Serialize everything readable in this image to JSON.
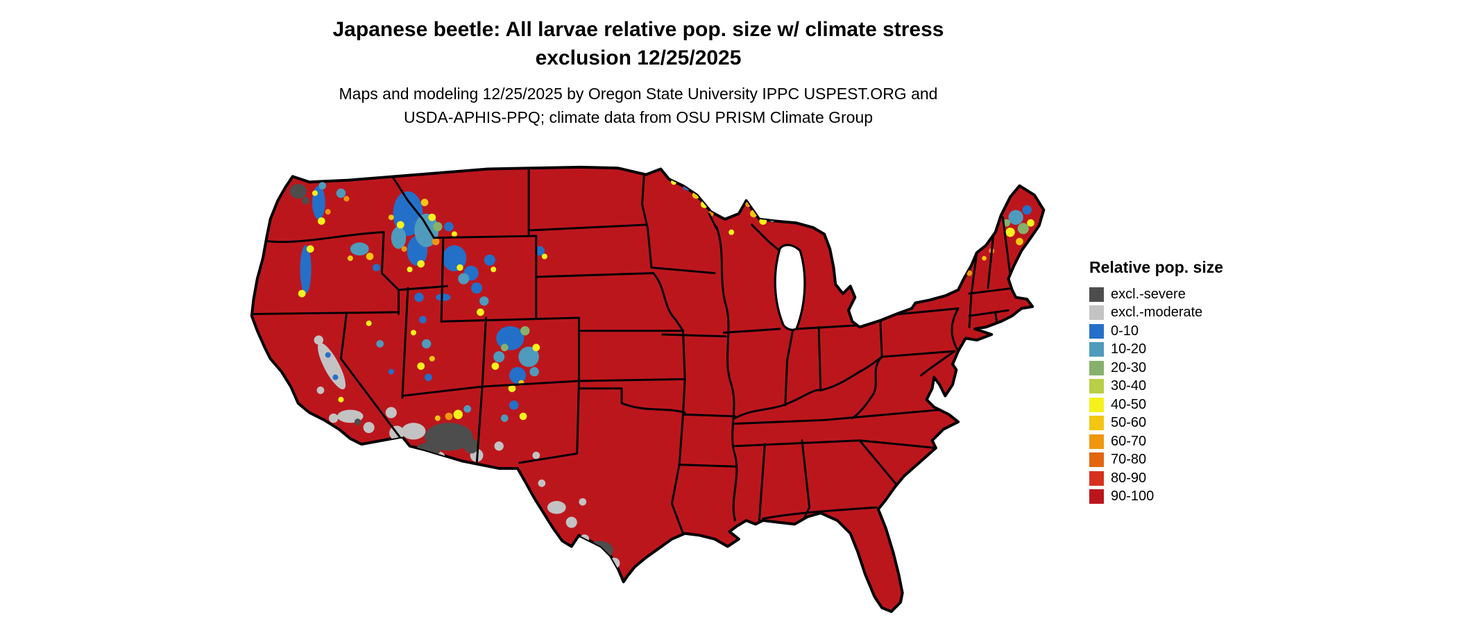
{
  "title": {
    "line1": "Japanese beetle: All larvae relative pop. size w/ climate stress",
    "line2": "exclusion 12/25/2025"
  },
  "subtitle": {
    "line1": "Maps and modeling 12/25/2025 by Oregon State University IPPC USPEST.ORG and",
    "line2": "USDA-APHIS-PPQ; climate data from OSU PRISM Climate Group"
  },
  "map": {
    "region": "contiguous United States",
    "dominant_class": "90-100",
    "notes": "mountain west shows 0-50 classes; AZ, S TX, S CA show exclusion greys"
  },
  "legend": {
    "title": "Relative pop. size",
    "items": [
      {
        "label": "excl.-severe",
        "color": "#4d4d4d"
      },
      {
        "label": "excl.-moderate",
        "color": "#c3c3c3"
      },
      {
        "label": "0-10",
        "color": "#2470c8"
      },
      {
        "label": "10-20",
        "color": "#4e9bbd"
      },
      {
        "label": "20-30",
        "color": "#86b16a"
      },
      {
        "label": "30-40",
        "color": "#b9cf45"
      },
      {
        "label": "40-50",
        "color": "#f6f11d"
      },
      {
        "label": "50-60",
        "color": "#f3c613"
      },
      {
        "label": "60-70",
        "color": "#f0960f"
      },
      {
        "label": "70-80",
        "color": "#e2650f"
      },
      {
        "label": "80-90",
        "color": "#d8311f"
      },
      {
        "label": "90-100",
        "color": "#bc161d"
      }
    ]
  }
}
